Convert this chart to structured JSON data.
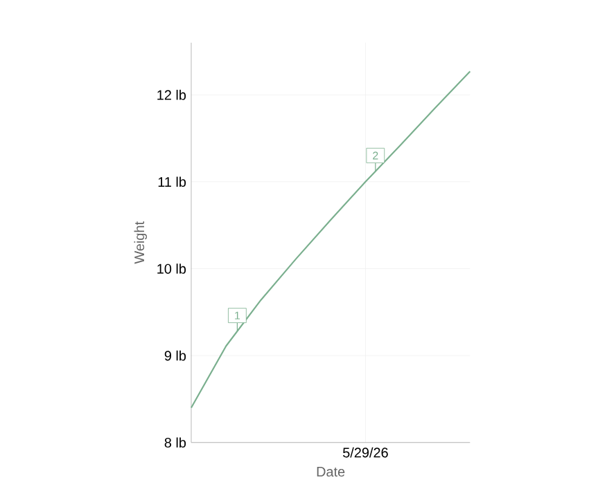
{
  "chart_data": {
    "type": "line",
    "xlabel": "Date",
    "ylabel": "Weight",
    "categories": [
      null,
      null,
      null,
      null,
      null,
      "5/29/26",
      null,
      null,
      null
    ],
    "series": [
      {
        "color": "#7aaf8e",
        "values": [
          8.4,
          9.11,
          9.64,
          10.11,
          10.56,
          11.0,
          11.42,
          11.85,
          12.27
        ]
      }
    ],
    "ylim": [
      8,
      12.6
    ],
    "yticks": [
      {
        "value": 8,
        "label": "8 lb"
      },
      {
        "value": 9,
        "label": "9 lb"
      },
      {
        "value": 10,
        "label": "10 lb"
      },
      {
        "value": 11,
        "label": "11 lb"
      },
      {
        "value": 12,
        "label": "12 lb"
      }
    ],
    "grid": true,
    "marker": "none",
    "line_style": "solid",
    "annotations": [
      {
        "text": "1",
        "y": 9.28
      },
      {
        "text": "2",
        "y": 11.12
      }
    ]
  }
}
